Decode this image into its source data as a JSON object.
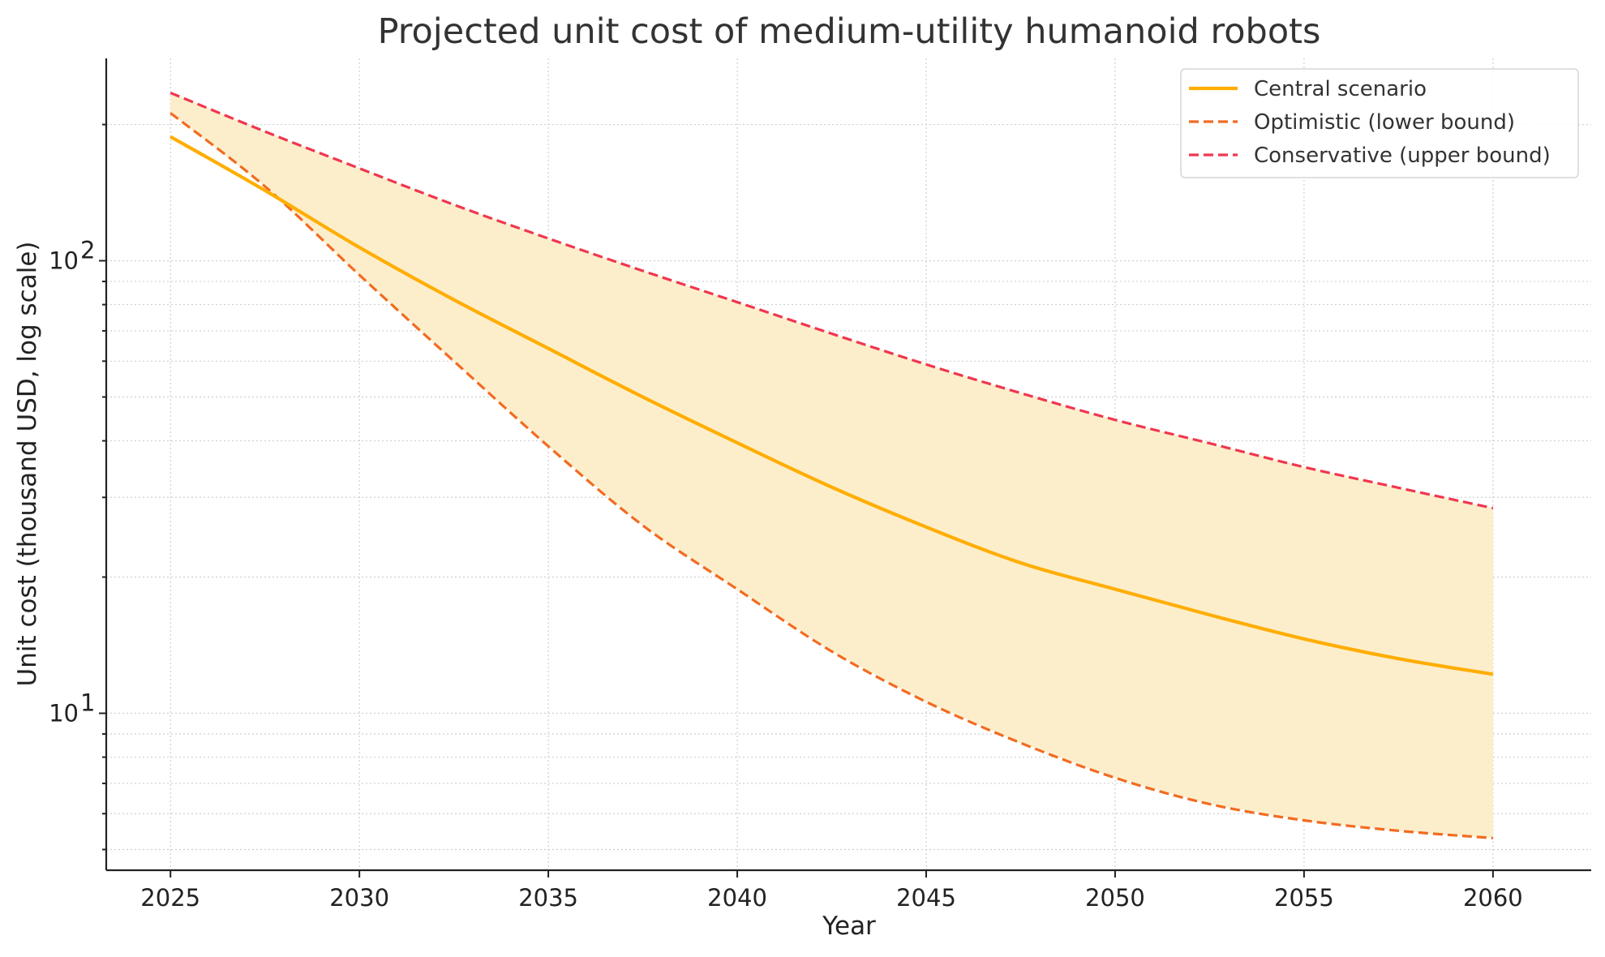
{
  "chart_data": {
    "type": "line",
    "title": "Projected unit cost of medium-utility humanoid robots",
    "xlabel": "Year",
    "ylabel": "Unit cost (thousand USD, log scale)",
    "x_scale": "linear",
    "y_scale": "log",
    "xlim": [
      2023.3,
      2062.6
    ],
    "ylim": [
      4.5,
      280
    ],
    "grid": true,
    "legend_position": "top-right",
    "x_ticks": [
      2025,
      2030,
      2035,
      2040,
      2045,
      2050,
      2055,
      2060
    ],
    "x_tick_labels": [
      "2025",
      "2030",
      "2035",
      "2040",
      "2045",
      "2050",
      "2055",
      "2060"
    ],
    "y_major_ticks": [
      {
        "value": 10,
        "base": "10",
        "exp": "1"
      },
      {
        "value": 100,
        "base": "10",
        "exp": "2"
      }
    ],
    "y_minor_ticks": [
      5,
      6,
      7,
      8,
      9,
      20,
      30,
      40,
      50,
      60,
      70,
      80,
      90,
      200
    ],
    "x": [
      2025,
      2027.5,
      2030,
      2032.5,
      2035,
      2037.5,
      2040,
      2042.5,
      2045,
      2047.5,
      2050,
      2052.5,
      2055,
      2057.5,
      2060
    ],
    "band": {
      "lower": "Optimistic (lower bound)",
      "upper": "Conservative (upper bound)",
      "color": "#fdeecb"
    },
    "series": [
      {
        "name": "Central scenario",
        "color": "#ffad00",
        "style": "solid",
        "values": [
          188,
          143,
          107,
          82,
          64,
          50,
          39.6,
          31.6,
          25.8,
          21.5,
          18.8,
          16.5,
          14.6,
          13.2,
          12.2
        ]
      },
      {
        "name": "Optimistic (lower bound)",
        "color": "#f26b21",
        "style": "dashed",
        "values": [
          212,
          146,
          93,
          60,
          38.9,
          26,
          18.8,
          13.7,
          10.6,
          8.6,
          7.2,
          6.3,
          5.8,
          5.5,
          5.3
        ]
      },
      {
        "name": "Conservative (upper bound)",
        "color": "#f03650",
        "style": "dashed",
        "values": [
          235,
          193,
          160,
          133,
          112,
          95,
          81,
          69,
          59,
          51,
          44.5,
          39.5,
          35,
          31.5,
          28.4
        ]
      }
    ]
  }
}
